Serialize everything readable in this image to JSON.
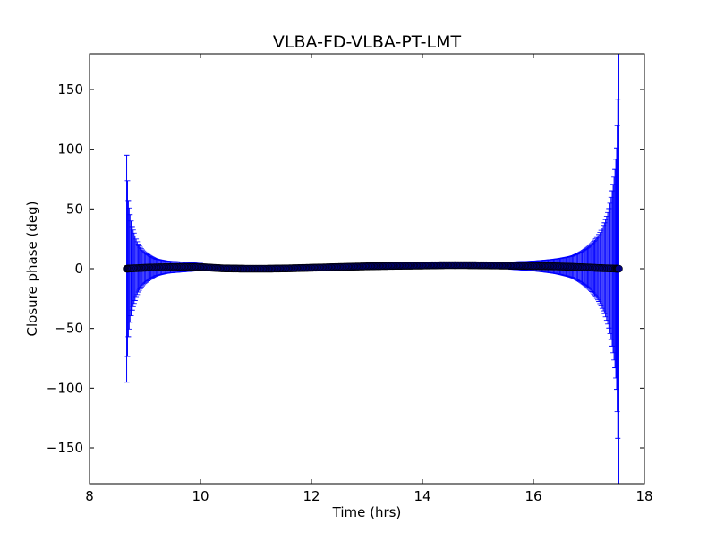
{
  "chart_data": {
    "type": "scatter",
    "title": "VLBA-FD-VLBA-PT-LMT",
    "xlabel": "Time (hrs)",
    "ylabel": "Closure phase (deg)",
    "xlim": [
      8,
      18
    ],
    "ylim": [
      -180,
      180
    ],
    "xticks": [
      8,
      10,
      12,
      14,
      16,
      18
    ],
    "yticks": [
      -150,
      -100,
      -50,
      0,
      50,
      100,
      150
    ],
    "xtick_labels": [
      "8",
      "10",
      "12",
      "14",
      "16",
      "18"
    ],
    "ytick_labels": [
      "−150",
      "−100",
      "−50",
      "0",
      "50",
      "100",
      "150"
    ],
    "grid": false,
    "legend": "none",
    "series": [
      {
        "color": "#000080",
        "errorbar_color": "#0000ff",
        "points": [
          {
            "x": 8.67,
            "y": 0.0,
            "err": 95
          },
          {
            "x": 8.7,
            "y": 0.1,
            "err": 57
          },
          {
            "x": 8.73,
            "y": 0.2,
            "err": 45
          },
          {
            "x": 8.77,
            "y": 0.3,
            "err": 35
          },
          {
            "x": 8.82,
            "y": 0.4,
            "err": 27
          },
          {
            "x": 8.88,
            "y": 0.5,
            "err": 20
          },
          {
            "x": 8.95,
            "y": 0.7,
            "err": 15
          },
          {
            "x": 9.05,
            "y": 0.9,
            "err": 11
          },
          {
            "x": 9.2,
            "y": 1.1,
            "err": 7
          },
          {
            "x": 9.4,
            "y": 1.3,
            "err": 5
          },
          {
            "x": 9.7,
            "y": 1.5,
            "err": 4
          },
          {
            "x": 10.0,
            "y": 1.4,
            "err": 3
          },
          {
            "x": 10.4,
            "y": 0.3,
            "err": 2.5
          },
          {
            "x": 10.8,
            "y": 0.0,
            "err": 2.5
          },
          {
            "x": 11.2,
            "y": 0.0,
            "err": 2.5
          },
          {
            "x": 11.6,
            "y": 0.3,
            "err": 2.5
          },
          {
            "x": 12.0,
            "y": 0.8,
            "err": 2.5
          },
          {
            "x": 12.4,
            "y": 1.3,
            "err": 2.5
          },
          {
            "x": 12.8,
            "y": 1.8,
            "err": 2.5
          },
          {
            "x": 13.2,
            "y": 2.2,
            "err": 2.5
          },
          {
            "x": 13.6,
            "y": 2.5,
            "err": 2.5
          },
          {
            "x": 14.0,
            "y": 2.7,
            "err": 2.5
          },
          {
            "x": 14.4,
            "y": 3.0,
            "err": 2.5
          },
          {
            "x": 14.8,
            "y": 3.0,
            "err": 2.5
          },
          {
            "x": 15.2,
            "y": 2.8,
            "err": 2.5
          },
          {
            "x": 15.6,
            "y": 2.6,
            "err": 3
          },
          {
            "x": 16.0,
            "y": 2.3,
            "err": 4
          },
          {
            "x": 16.4,
            "y": 2.0,
            "err": 6
          },
          {
            "x": 16.7,
            "y": 1.6,
            "err": 9
          },
          {
            "x": 16.9,
            "y": 1.2,
            "err": 14
          },
          {
            "x": 17.05,
            "y": 0.9,
            "err": 20
          },
          {
            "x": 17.18,
            "y": 0.6,
            "err": 28
          },
          {
            "x": 17.28,
            "y": 0.4,
            "err": 38
          },
          {
            "x": 17.36,
            "y": 0.3,
            "err": 50
          },
          {
            "x": 17.42,
            "y": 0.2,
            "err": 65
          },
          {
            "x": 17.47,
            "y": 0.1,
            "err": 83
          },
          {
            "x": 17.5,
            "y": 0.05,
            "err": 101
          },
          {
            "x": 17.52,
            "y": 0.0,
            "err": 142
          },
          {
            "x": 17.54,
            "y": 0.0,
            "err": 250
          }
        ]
      }
    ]
  }
}
